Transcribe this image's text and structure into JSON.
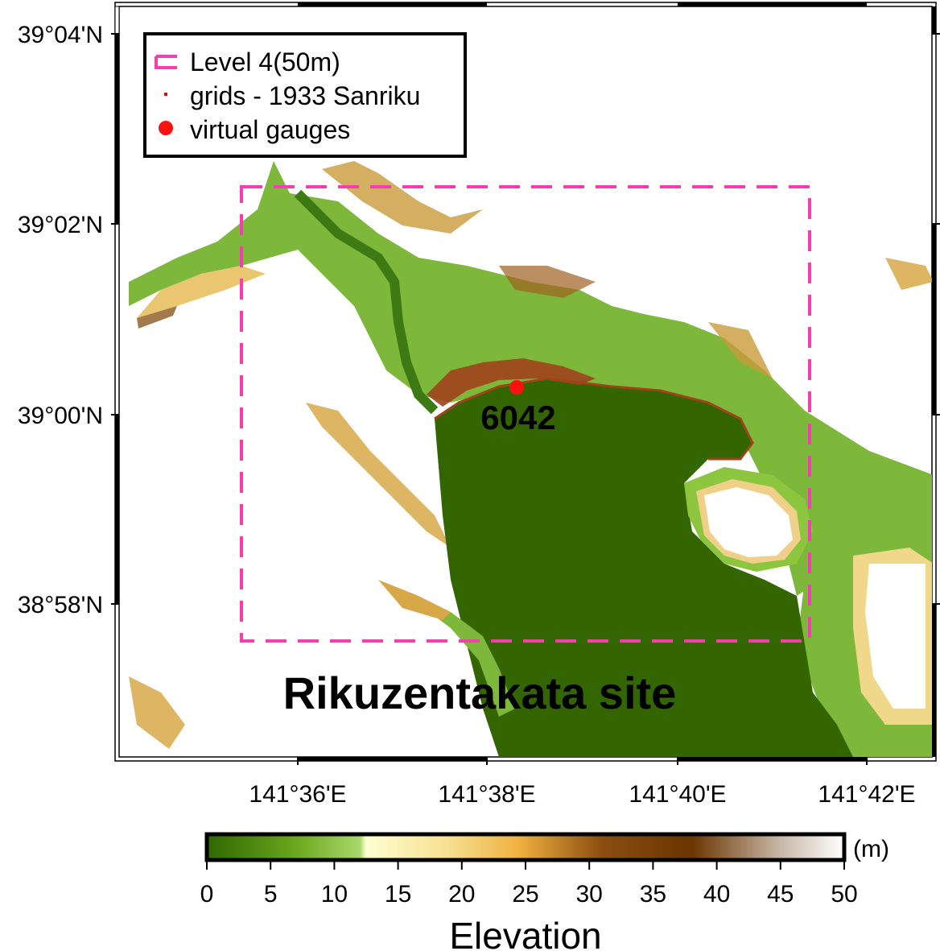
{
  "map": {
    "site_label": "Rikuzentakata site",
    "lat_ticks": [
      "39°04'N",
      "39°02'N",
      "39°00'N",
      "38°58'N"
    ],
    "lon_ticks": [
      "141°36'E",
      "141°38'E",
      "141°40'E",
      "141°42'E"
    ],
    "legend": {
      "items": [
        {
          "label": "Level 4(50m)",
          "symbol": "dashed-rectangle",
          "color": "#f43fb0"
        },
        {
          "label": "grids - 1933 Sanriku",
          "symbol": "small-square",
          "color": "#e01010"
        },
        {
          "label": "virtual gauges",
          "symbol": "circle",
          "color": "#ff1010"
        }
      ]
    },
    "gauge": {
      "id": "6042",
      "color": "#ff1010"
    },
    "level4_box_color": "#f43fb0",
    "sea_color": "#336600"
  },
  "colorbar": {
    "title": "Elevation",
    "unit": "(m)",
    "ticks": [
      "0",
      "5",
      "10",
      "15",
      "20",
      "25",
      "30",
      "35",
      "40",
      "45",
      "50"
    ],
    "range": [
      0,
      50
    ],
    "colors": [
      "#2e6800",
      "#8cc63e",
      "#ffffd0",
      "#f0b040",
      "#6a3500",
      "#ffffff"
    ]
  }
}
